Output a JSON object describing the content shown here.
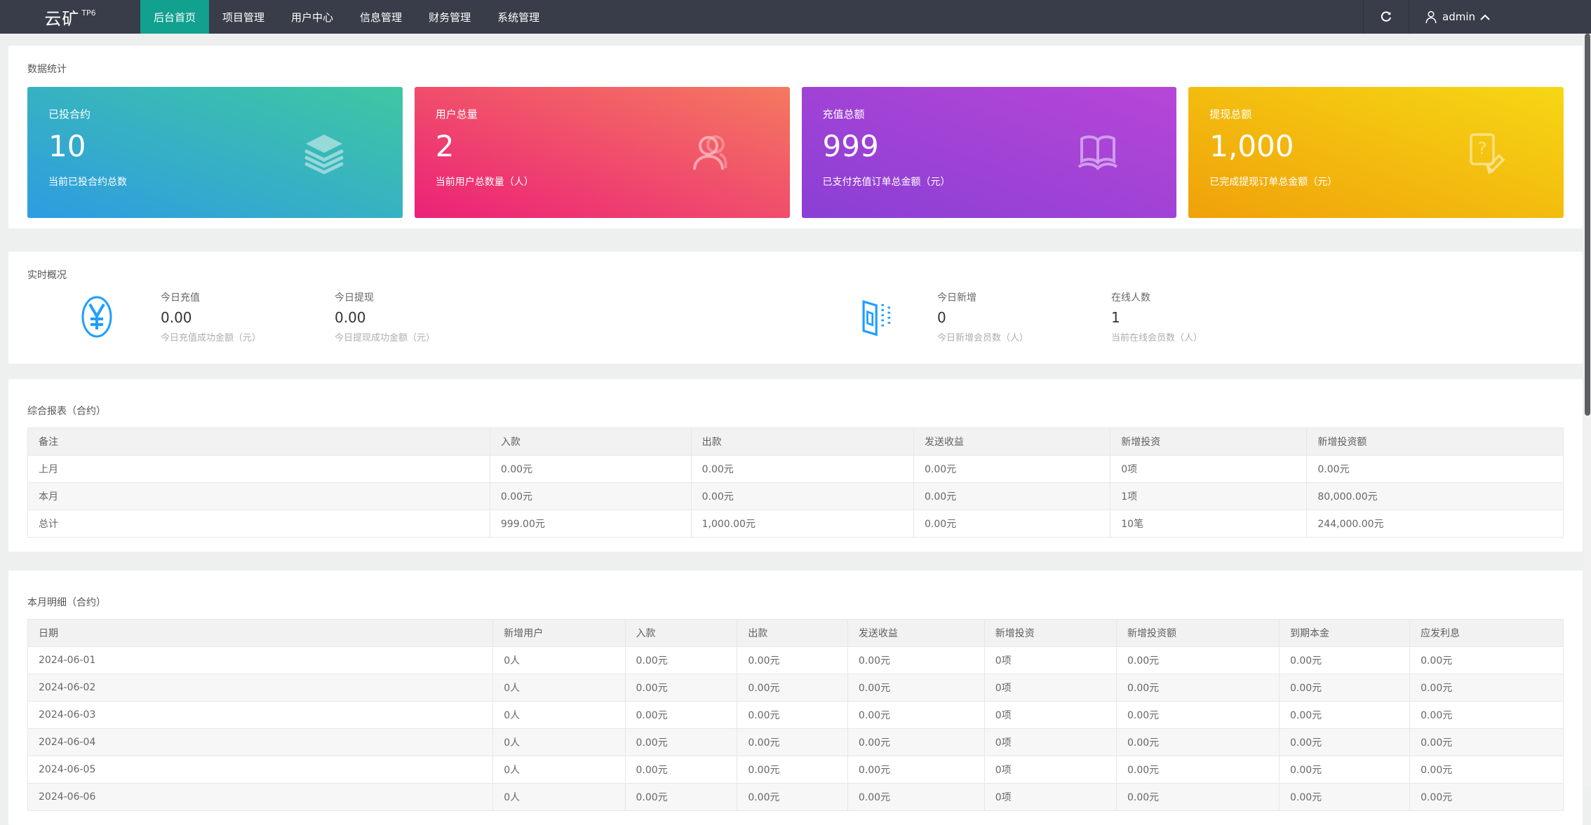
{
  "theme": {
    "navbar_bg": "#393d49",
    "active_tab_bg": "#12a08f",
    "icon_blue": "#1e9fff"
  },
  "navbar": {
    "logo": "云矿",
    "logo_sup": "TP6",
    "menu": [
      {
        "label": "后台首页",
        "active": true
      },
      {
        "label": "项目管理",
        "active": false
      },
      {
        "label": "用户中心",
        "active": false
      },
      {
        "label": "信息管理",
        "active": false
      },
      {
        "label": "财务管理",
        "active": false
      },
      {
        "label": "系统管理",
        "active": false
      }
    ],
    "user": "admin"
  },
  "stats_panel": {
    "title": "数据统计",
    "cards": [
      {
        "title": "已投合约",
        "value": "10",
        "desc": "当前已投合约总数",
        "icon": "layers-icon",
        "gradient_from": "#2e9ce2",
        "gradient_to": "#3fc7a2"
      },
      {
        "title": "用户总量",
        "value": "2",
        "desc": "当前用户总数量（人）",
        "icon": "users-icon",
        "gradient_from": "#ec2178",
        "gradient_to": "#f4795f"
      },
      {
        "title": "充值总额",
        "value": "999",
        "desc": "已支付充值订单总金额（元）",
        "icon": "open-book-icon",
        "gradient_from": "#8a3fd4",
        "gradient_to": "#b746d8"
      },
      {
        "title": "提现总额",
        "value": "1,000",
        "desc": "已完成提现订单总金额（元）",
        "icon": "doc-question-icon",
        "gradient_from": "#f0a10a",
        "gradient_to": "#f6d714"
      }
    ]
  },
  "realtime_panel": {
    "title": "实时概况",
    "groups": [
      {
        "icon": "yen-circle-icon",
        "items": [
          {
            "label": "今日充值",
            "value": "0.00",
            "desc": "今日充值成功金额（元）"
          },
          {
            "label": "今日提现",
            "value": "0.00",
            "desc": "今日提现成功金额（元）"
          }
        ]
      },
      {
        "icon": "building-icon",
        "items": [
          {
            "label": "今日新增",
            "value": "0",
            "desc": "今日新增会员数（人）"
          },
          {
            "label": "在线人数",
            "value": "1",
            "desc": "当前在线会员数（人）"
          }
        ]
      }
    ]
  },
  "summary_table": {
    "title": "综合报表（合约）",
    "columns": [
      "备注",
      "入款",
      "出款",
      "发送收益",
      "新增投资",
      "新增投资额"
    ],
    "rows": [
      [
        "上月",
        "0.00元",
        "0.00元",
        "0.00元",
        "0项",
        "0.00元"
      ],
      [
        "本月",
        "0.00元",
        "0.00元",
        "0.00元",
        "1项",
        "80,000.00元"
      ],
      [
        "总计",
        "999.00元",
        "1,000.00元",
        "0.00元",
        "10笔",
        "244,000.00元"
      ]
    ]
  },
  "detail_table": {
    "title": "本月明细（合约）",
    "columns": [
      "日期",
      "新增用户",
      "入款",
      "出款",
      "发送收益",
      "新增投资",
      "新增投资额",
      "到期本金",
      "应发利息"
    ],
    "rows": [
      [
        "2024-06-01",
        "0人",
        "0.00元",
        "0.00元",
        "0.00元",
        "0项",
        "0.00元",
        "0.00元",
        "0.00元"
      ],
      [
        "2024-06-02",
        "0人",
        "0.00元",
        "0.00元",
        "0.00元",
        "0项",
        "0.00元",
        "0.00元",
        "0.00元"
      ],
      [
        "2024-06-03",
        "0人",
        "0.00元",
        "0.00元",
        "0.00元",
        "0项",
        "0.00元",
        "0.00元",
        "0.00元"
      ],
      [
        "2024-06-04",
        "0人",
        "0.00元",
        "0.00元",
        "0.00元",
        "0项",
        "0.00元",
        "0.00元",
        "0.00元"
      ],
      [
        "2024-06-05",
        "0人",
        "0.00元",
        "0.00元",
        "0.00元",
        "0项",
        "0.00元",
        "0.00元",
        "0.00元"
      ],
      [
        "2024-06-06",
        "0人",
        "0.00元",
        "0.00元",
        "0.00元",
        "0项",
        "0.00元",
        "0.00元",
        "0.00元"
      ]
    ]
  }
}
